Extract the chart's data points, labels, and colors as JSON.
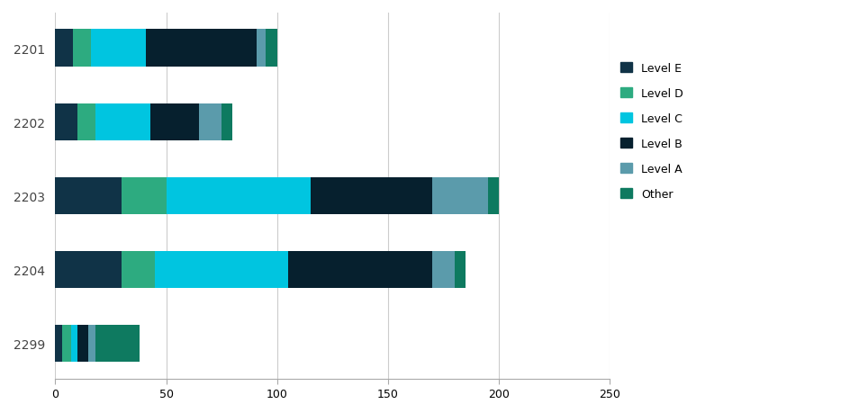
{
  "categories": [
    "2201",
    "2202",
    "2203",
    "2204",
    "2299"
  ],
  "series": {
    "Level E": [
      8,
      10,
      30,
      30,
      3
    ],
    "Level D": [
      8,
      8,
      20,
      15,
      4
    ],
    "Level C": [
      25,
      25,
      65,
      60,
      3
    ],
    "Level B": [
      50,
      22,
      55,
      65,
      5
    ],
    "Level A": [
      4,
      10,
      25,
      10,
      3
    ],
    "Other": [
      5,
      5,
      5,
      5,
      20
    ]
  },
  "colors": {
    "Level E": "#103347",
    "Level D": "#2dab80",
    "Level C": "#00c5e0",
    "Level B": "#06202e",
    "Level A": "#5b9bab",
    "Other": "#0e7a60"
  },
  "xlim": [
    0,
    250
  ],
  "xticks": [
    0,
    50,
    100,
    150,
    200,
    250
  ],
  "bar_height": 0.5,
  "background_color": "#ffffff",
  "grid_color": "#cccccc",
  "legend_labels": [
    "Level E",
    "Level D",
    "Level C",
    "Level B",
    "Level A",
    "Other"
  ],
  "figsize": [
    9.45,
    4.6
  ],
  "dpi": 100
}
